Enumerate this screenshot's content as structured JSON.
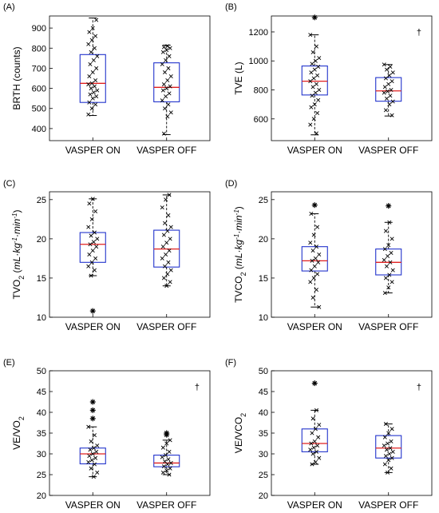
{
  "chart_data": [
    {
      "panel": "(A)",
      "type": "box",
      "ylabel": "BRTH (counts)",
      "ylim": [
        340,
        960
      ],
      "yticks": [
        400,
        500,
        600,
        700,
        800,
        900
      ],
      "categories": [
        "VASPER ON",
        "VASPER OFF"
      ],
      "significance_marker": "",
      "boxes": [
        {
          "category": "VASPER ON",
          "whisker_low": 465,
          "q1": 530,
          "median": 625,
          "q3": 768,
          "whisker_high": 950,
          "outliers": [],
          "points": [
            470,
            500,
            520,
            530,
            550,
            560,
            570,
            580,
            590,
            600,
            610,
            620,
            625,
            640,
            660,
            680,
            700,
            720,
            740,
            760,
            780,
            800,
            820,
            840,
            860,
            880,
            900,
            940
          ]
        },
        {
          "category": "VASPER OFF",
          "whisker_low": 370,
          "q1": 533,
          "median": 605,
          "q3": 727,
          "whisker_high": 815,
          "outliers": [],
          "points": [
            375,
            460,
            480,
            500,
            520,
            540,
            560,
            575,
            590,
            600,
            610,
            620,
            640,
            660,
            680,
            700,
            720,
            740,
            760,
            780,
            790,
            800,
            805,
            810
          ]
        }
      ]
    },
    {
      "panel": "(B)",
      "type": "box",
      "ylabel": "TVE (L)",
      "ylim": [
        450,
        1310
      ],
      "yticks": [
        600,
        800,
        1000,
        1200
      ],
      "categories": [
        "VASPER ON",
        "VASPER OFF"
      ],
      "significance_marker": "†",
      "boxes": [
        {
          "category": "VASPER ON",
          "whisker_low": 490,
          "q1": 765,
          "median": 860,
          "q3": 965,
          "whisker_high": 1180,
          "outliers": [
            1300
          ],
          "points": [
            500,
            560,
            600,
            640,
            680,
            700,
            730,
            760,
            780,
            800,
            820,
            840,
            860,
            880,
            900,
            920,
            940,
            960,
            980,
            1000,
            1020,
            1060,
            1100,
            1180
          ]
        },
        {
          "category": "VASPER OFF",
          "whisker_low": 620,
          "q1": 722,
          "median": 793,
          "q3": 885,
          "whisker_high": 975,
          "outliers": [],
          "points": [
            625,
            660,
            700,
            720,
            740,
            760,
            780,
            790,
            800,
            820,
            840,
            860,
            880,
            900,
            920,
            940,
            960,
            975
          ]
        }
      ]
    },
    {
      "panel": "(C)",
      "type": "box",
      "ylabel": "TVO2 (mL·kg-1·min-1)",
      "ylim": [
        10,
        26
      ],
      "yticks": [
        10,
        15,
        20,
        25
      ],
      "categories": [
        "VASPER ON",
        "VASPER OFF"
      ],
      "significance_marker": "",
      "boxes": [
        {
          "category": "VASPER ON",
          "whisker_low": 15.3,
          "q1": 17.0,
          "median": 19.3,
          "q3": 20.8,
          "whisker_high": 25.1,
          "outliers": [
            10.8
          ],
          "points": [
            15.3,
            16.0,
            16.5,
            17.0,
            17.5,
            18.0,
            18.5,
            19.0,
            19.3,
            19.6,
            20.0,
            20.4,
            20.8,
            21.5,
            22.5,
            23.5,
            24.5,
            25.1
          ]
        },
        {
          "category": "VASPER OFF",
          "whisker_low": 14.0,
          "q1": 16.4,
          "median": 18.7,
          "q3": 21.1,
          "whisker_high": 25.6,
          "outliers": [],
          "points": [
            14.0,
            14.5,
            15.0,
            15.5,
            16.0,
            16.5,
            17.0,
            17.5,
            18.0,
            18.5,
            19.0,
            19.5,
            20.0,
            20.5,
            21.0,
            21.5,
            22.0,
            23.0,
            24.0,
            25.0,
            25.6
          ]
        }
      ]
    },
    {
      "panel": "(D)",
      "type": "box",
      "ylabel": "TVCO2 (mL·kg-1·min-1)",
      "ylim": [
        10,
        26
      ],
      "yticks": [
        10,
        15,
        20,
        25
      ],
      "categories": [
        "VASPER ON",
        "VASPER OFF"
      ],
      "significance_marker": "",
      "boxes": [
        {
          "category": "VASPER ON",
          "whisker_low": 11.3,
          "q1": 15.9,
          "median": 17.2,
          "q3": 19.0,
          "whisker_high": 23.2,
          "outliers": [
            24.3
          ],
          "points": [
            11.3,
            12.5,
            13.5,
            14.5,
            15.0,
            15.5,
            16.0,
            16.5,
            17.0,
            17.2,
            17.5,
            18.0,
            18.5,
            19.0,
            19.5,
            20.5,
            21.5,
            23.2
          ]
        },
        {
          "category": "VASPER OFF",
          "whisker_low": 13.1,
          "q1": 15.4,
          "median": 17.0,
          "q3": 18.7,
          "whisker_high": 22.1,
          "outliers": [
            24.2
          ],
          "points": [
            13.1,
            13.8,
            14.5,
            15.0,
            15.4,
            16.0,
            16.5,
            17.0,
            17.3,
            17.8,
            18.2,
            18.7,
            19.2,
            20.0,
            21.0,
            22.1
          ]
        }
      ]
    },
    {
      "panel": "(E)",
      "type": "box",
      "ylabel": "VE/VO2",
      "ylim": [
        20,
        50
      ],
      "yticks": [
        20,
        25,
        30,
        35,
        40,
        45,
        50
      ],
      "categories": [
        "VASPER ON",
        "VASPER OFF"
      ],
      "significance_marker": "†",
      "boxes": [
        {
          "category": "VASPER ON",
          "whisker_low": 24.5,
          "q1": 27.6,
          "median": 30.0,
          "q3": 31.4,
          "whisker_high": 36.5,
          "outliers": [
            38.5,
            40.5,
            42.5
          ],
          "points": [
            24.5,
            25.5,
            26.5,
            27.5,
            28.0,
            28.5,
            29.0,
            29.5,
            30.0,
            30.5,
            31.0,
            31.4,
            32.0,
            33.0,
            34.5,
            36.5
          ]
        },
        {
          "category": "VASPER OFF",
          "whisker_low": 25.0,
          "q1": 26.9,
          "median": 27.8,
          "q3": 29.7,
          "whisker_high": 33.3,
          "outliers": [
            34.6,
            35.0
          ],
          "points": [
            25.0,
            25.5,
            26.0,
            26.5,
            27.0,
            27.5,
            27.8,
            28.2,
            28.7,
            29.2,
            29.7,
            30.5,
            31.5,
            32.5,
            33.3
          ]
        }
      ]
    },
    {
      "panel": "(F)",
      "type": "box",
      "ylabel": "VE/VCO2",
      "ylim": [
        20,
        50
      ],
      "yticks": [
        20,
        25,
        30,
        35,
        40,
        45,
        50
      ],
      "categories": [
        "VASPER ON",
        "VASPER OFF"
      ],
      "significance_marker": "†",
      "boxes": [
        {
          "category": "VASPER ON",
          "whisker_low": 27.5,
          "q1": 30.5,
          "median": 32.5,
          "q3": 36.0,
          "whisker_high": 40.5,
          "outliers": [
            47.0
          ],
          "points": [
            27.5,
            28.0,
            29.0,
            30.0,
            30.5,
            31.0,
            31.5,
            32.0,
            32.5,
            33.0,
            34.0,
            35.0,
            36.0,
            37.0,
            38.5,
            40.5
          ]
        },
        {
          "category": "VASPER OFF",
          "whisker_low": 25.5,
          "q1": 29.0,
          "median": 31.4,
          "q3": 34.4,
          "whisker_high": 37.2,
          "outliers": [],
          "points": [
            25.5,
            26.5,
            27.5,
            28.5,
            29.0,
            29.5,
            30.0,
            30.5,
            31.0,
            31.4,
            32.0,
            32.5,
            33.0,
            34.0,
            35.0,
            36.0,
            37.2
          ]
        }
      ]
    }
  ]
}
